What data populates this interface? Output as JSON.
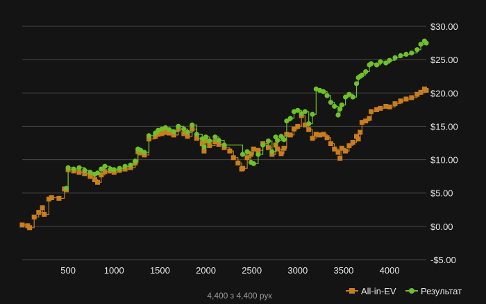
{
  "chart_data": {
    "type": "line",
    "title": "",
    "xlabel": "",
    "ylabel": "",
    "xlim": [
      0,
      4400
    ],
    "ylim": [
      -5,
      30
    ],
    "x_ticks": [
      500,
      1000,
      1500,
      2000,
      2500,
      3000,
      3500,
      4000
    ],
    "x_tick_labels": [
      "500",
      "1000",
      "1500",
      "2000",
      "2500",
      "3000",
      "3500",
      "4000"
    ],
    "y_ticks": [
      -5,
      0,
      5,
      10,
      15,
      20,
      25,
      30
    ],
    "y_tick_labels": [
      "-$5.00",
      "$0.00",
      "$5.00",
      "$10.00",
      "$15.00",
      "$20.00",
      "$25.00",
      "$30.00"
    ],
    "grid": "horizontal",
    "legend_position": "bottom-right",
    "footer": "4,400 з 4,400 рук",
    "colors": {
      "background": "#141414",
      "grid": "#4a4a4a",
      "all_in_ev": "#c87d1e",
      "result": "#6fc02b"
    },
    "series": [
      {
        "name": "All-in-EV",
        "color": "#c87d1e",
        "marker": "square",
        "x": [
          0,
          60,
          80,
          130,
          180,
          220,
          240,
          290,
          320,
          400,
          460,
          480,
          500,
          560,
          620,
          680,
          740,
          790,
          820,
          860,
          900,
          960,
          1000,
          1060,
          1120,
          1180,
          1230,
          1260,
          1290,
          1330,
          1380,
          1450,
          1480,
          1520,
          1560,
          1600,
          1650,
          1700,
          1760,
          1800,
          1850,
          1900,
          1960,
          1980,
          2000,
          2040,
          2100,
          2140,
          2200,
          2260,
          2300,
          2350,
          2390,
          2400,
          2450,
          2490,
          2520,
          2570,
          2620,
          2680,
          2720,
          2760,
          2780,
          2820,
          2850,
          2880,
          2920,
          2960,
          3000,
          3040,
          3080,
          3120,
          3160,
          3200,
          3240,
          3280,
          3320,
          3360,
          3400,
          3440,
          3460,
          3480,
          3520,
          3560,
          3600,
          3640,
          3660,
          3680,
          3700,
          3740,
          3780,
          3800,
          3860,
          3900,
          3960,
          4000,
          4060,
          4120,
          4180,
          4240,
          4300,
          4340,
          4380,
          4400
        ],
        "y": [
          0.2,
          0.1,
          -0.2,
          1.4,
          2.1,
          2.8,
          1.8,
          4.1,
          4.3,
          4.2,
          5.6,
          5.5,
          8.5,
          8.3,
          8.1,
          7.9,
          7.5,
          7.0,
          6.6,
          7.7,
          8.2,
          8.3,
          8.1,
          8.4,
          8.6,
          8.8,
          9.5,
          11.2,
          11.0,
          10.7,
          13.1,
          13.5,
          13.8,
          13.9,
          14.1,
          14.0,
          13.7,
          14.6,
          13.9,
          13.5,
          14.6,
          13.2,
          12.4,
          11.3,
          12.8,
          12.1,
          12.7,
          12.3,
          11.8,
          11.3,
          10.3,
          9.5,
          8.6,
          8.7,
          10.3,
          10.8,
          11.6,
          11.4,
          12.4,
          11.8,
          10.8,
          12.2,
          11.6,
          10.9,
          11.7,
          13.8,
          13.7,
          14.6,
          15.0,
          16.6,
          15.2,
          14.5,
          13.2,
          13.8,
          13.7,
          13.8,
          13.3,
          12.4,
          11.6,
          11.1,
          10.2,
          11.7,
          11.3,
          12.1,
          12.6,
          13.5,
          13.1,
          14.1,
          15.6,
          15.8,
          16.2,
          17.2,
          17.5,
          17.7,
          18.0,
          17.9,
          18.4,
          18.8,
          19.1,
          19.3,
          19.8,
          20.1,
          20.6,
          20.4
        ]
      },
      {
        "name": "Результат",
        "color": "#6fc02b",
        "marker": "circle",
        "x": [
          480,
          500,
          560,
          620,
          680,
          740,
          790,
          820,
          860,
          900,
          960,
          1000,
          1060,
          1120,
          1180,
          1230,
          1260,
          1290,
          1330,
          1380,
          1450,
          1480,
          1520,
          1560,
          1600,
          1650,
          1700,
          1760,
          1800,
          1850,
          1900,
          1960,
          1980,
          2000,
          2040,
          2100,
          2140,
          2200,
          2400,
          2450,
          2490,
          2520,
          2570,
          2620,
          2680,
          2720,
          2760,
          2780,
          2820,
          2850,
          2880,
          2920,
          2960,
          3000,
          3040,
          3080,
          3120,
          3160,
          3200,
          3240,
          3280,
          3320,
          3360,
          3400,
          3440,
          3460,
          3480,
          3520,
          3560,
          3600,
          3640,
          3660,
          3680,
          3700,
          3740,
          3780,
          3800,
          3860,
          3900,
          3960,
          4000,
          4060,
          4120,
          4180,
          4240,
          4300,
          4340,
          4380,
          4400
        ],
        "y": [
          5.7,
          8.8,
          8.6,
          8.8,
          8.4,
          8.1,
          7.8,
          8.0,
          8.6,
          9.0,
          8.6,
          8.5,
          8.7,
          9.0,
          9.2,
          9.8,
          11.6,
          11.4,
          11.1,
          13.6,
          14.0,
          14.4,
          14.6,
          14.8,
          14.5,
          14.2,
          15.0,
          14.6,
          14.1,
          15.2,
          13.8,
          13.1,
          11.9,
          13.4,
          12.8,
          13.4,
          12.9,
          12.2,
          10.8,
          11.2,
          9.6,
          9.4,
          10.8,
          12.2,
          12.8,
          11.2,
          13.4,
          12.9,
          13.5,
          13.0,
          15.8,
          16.2,
          17.2,
          17.4,
          16.9,
          17.2,
          15.4,
          16.8,
          20.6,
          20.4,
          20.2,
          19.6,
          18.6,
          18.0,
          16.7,
          17.6,
          18.2,
          19.4,
          19.8,
          19.4,
          21.4,
          22.3,
          22.5,
          22.7,
          23.2,
          24.2,
          24.4,
          24.2,
          24.7,
          24.5,
          24.9,
          25.3,
          25.6,
          25.8,
          26.0,
          26.5,
          27.3,
          27.8,
          27.5
        ]
      }
    ]
  }
}
